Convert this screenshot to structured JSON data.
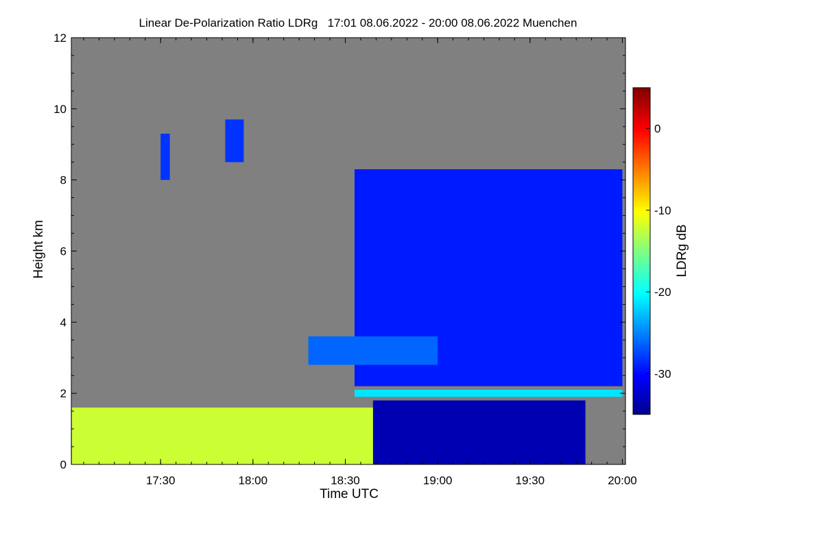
{
  "chart_data": {
    "type": "heatmap",
    "title": "Linear De-Polarization Ratio LDRg   17:01 08.06.2022 - 20:00 08.06.2022 Muenchen",
    "xlabel": "Time UTC",
    "ylabel": "Height km",
    "x_ticks": [
      "17:30",
      "18:00",
      "18:30",
      "19:00",
      "19:30",
      "20:00"
    ],
    "x_tick_hours": [
      17.5,
      18.0,
      18.5,
      19.0,
      19.5,
      20.0
    ],
    "xlim_hours": [
      17.0167,
      20.0167
    ],
    "y_ticks": [
      0,
      2,
      4,
      6,
      8,
      10,
      12
    ],
    "ylim": [
      0,
      12
    ],
    "colorbar": {
      "label": "LDRg dB",
      "ticks": [
        0,
        -10,
        -20,
        -30
      ],
      "range": [
        -35,
        5
      ],
      "colormap": "jet"
    },
    "no_signal_color": "#808080",
    "regions": [
      {
        "name": "boundary-layer-aerosol",
        "value_db": -12,
        "t_range": [
          17.02,
          18.65
        ],
        "h_range": [
          0,
          1.6
        ]
      },
      {
        "name": "cirrus-ice-cloud",
        "value_db": -29,
        "t_range": [
          18.55,
          20.0
        ],
        "h_range": [
          2.2,
          8.3
        ]
      },
      {
        "name": "melting-layer",
        "value_db": -21,
        "t_range": [
          18.55,
          20.0
        ],
        "h_range": [
          1.9,
          2.1
        ]
      },
      {
        "name": "liquid-precipitation",
        "value_db": -33,
        "t_range": [
          18.65,
          19.8
        ],
        "h_range": [
          0,
          1.8
        ]
      },
      {
        "name": "mid-level-layer",
        "value_db": -26,
        "t_range": [
          18.3,
          19.0
        ],
        "h_range": [
          2.8,
          3.6
        ]
      },
      {
        "name": "early-cirrus-streak-1",
        "value_db": -28,
        "t_range": [
          17.5,
          17.55
        ],
        "h_range": [
          8.0,
          9.3
        ]
      },
      {
        "name": "early-cirrus-streak-2",
        "value_db": -28,
        "t_range": [
          17.85,
          17.95
        ],
        "h_range": [
          8.5,
          9.7
        ]
      }
    ]
  }
}
